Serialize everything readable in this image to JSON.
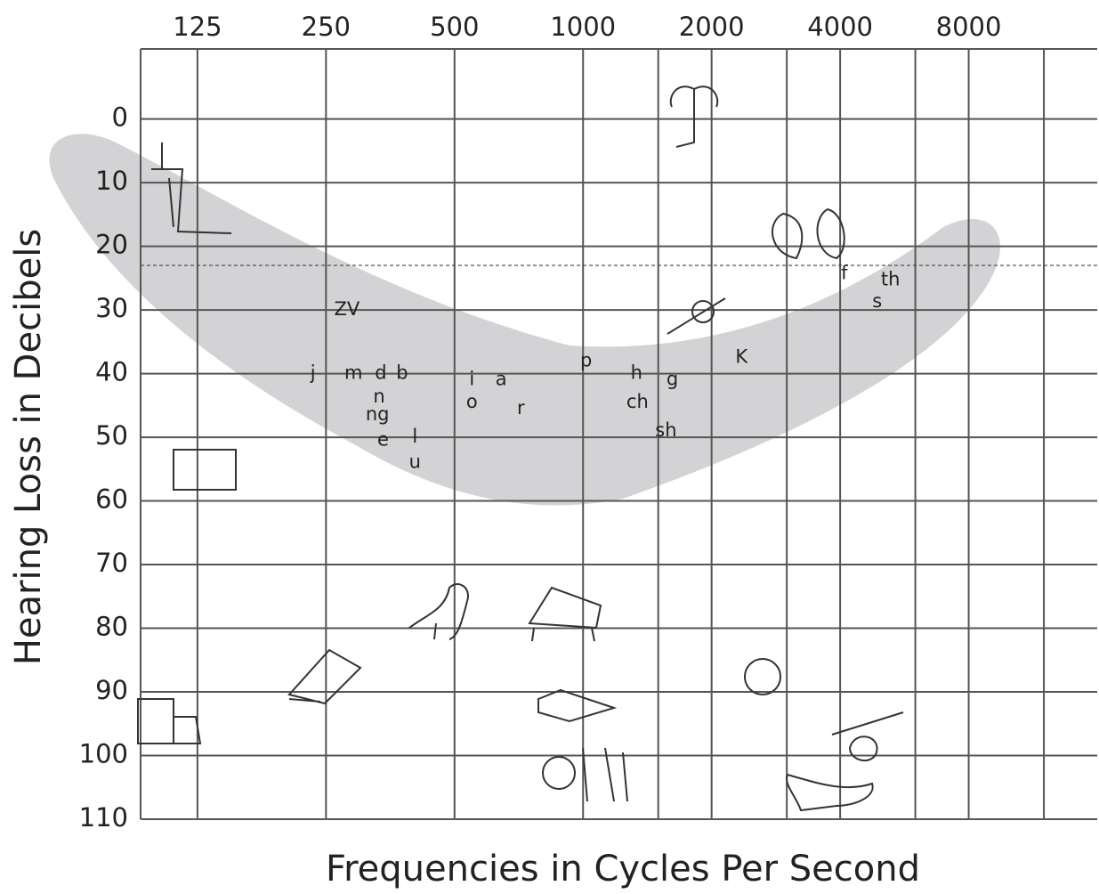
{
  "chart_data": {
    "type": "audiogram",
    "x_label": "Frequencies in Cycles Per Second",
    "y_label": "Hearing Loss in Decibels",
    "log_x": true,
    "xlim": [
      92,
      16000
    ],
    "xticks": [
      125,
      250,
      500,
      1000,
      2000,
      4000,
      8000
    ],
    "minor_xticks": [
      1500,
      3000,
      6000,
      12000
    ],
    "ylim": [
      110,
      -11
    ],
    "yticks": [
      0,
      10,
      20,
      30,
      40,
      50,
      60,
      70,
      80,
      90,
      100,
      110
    ],
    "grid": true,
    "threshold_line": 23,
    "color": "#555555",
    "band_color": "#d3d3d5",
    "sounds": [
      {
        "label": "ZV",
        "freq": 280,
        "db": 30
      },
      {
        "label": "j",
        "freq": 233,
        "db": 40
      },
      {
        "label": "m",
        "freq": 290,
        "db": 40
      },
      {
        "label": "d",
        "freq": 336,
        "db": 40
      },
      {
        "label": "b",
        "freq": 377,
        "db": 40
      },
      {
        "label": "n",
        "freq": 333,
        "db": 43.7
      },
      {
        "label": "ng",
        "freq": 330,
        "db": 46.5
      },
      {
        "label": "e",
        "freq": 340,
        "db": 50.5
      },
      {
        "label": "l",
        "freq": 404,
        "db": 50
      },
      {
        "label": "u",
        "freq": 404,
        "db": 54
      },
      {
        "label": "i",
        "freq": 549,
        "db": 41
      },
      {
        "label": "o",
        "freq": 549,
        "db": 44.5
      },
      {
        "label": "a",
        "freq": 643,
        "db": 41
      },
      {
        "label": "r",
        "freq": 715,
        "db": 45.5
      },
      {
        "label": "p",
        "freq": 1017,
        "db": 38
      },
      {
        "label": "h",
        "freq": 1334,
        "db": 40
      },
      {
        "label": "ch",
        "freq": 1341,
        "db": 44.5
      },
      {
        "label": "g",
        "freq": 1618,
        "db": 41
      },
      {
        "label": "sh",
        "freq": 1564,
        "db": 49
      },
      {
        "label": "K",
        "freq": 2350,
        "db": 37.5
      },
      {
        "label": "f",
        "freq": 4091,
        "db": 24.3
      },
      {
        "label": "th",
        "freq": 5248,
        "db": 25.3
      },
      {
        "label": "s",
        "freq": 4883,
        "db": 28.7
      }
    ]
  }
}
